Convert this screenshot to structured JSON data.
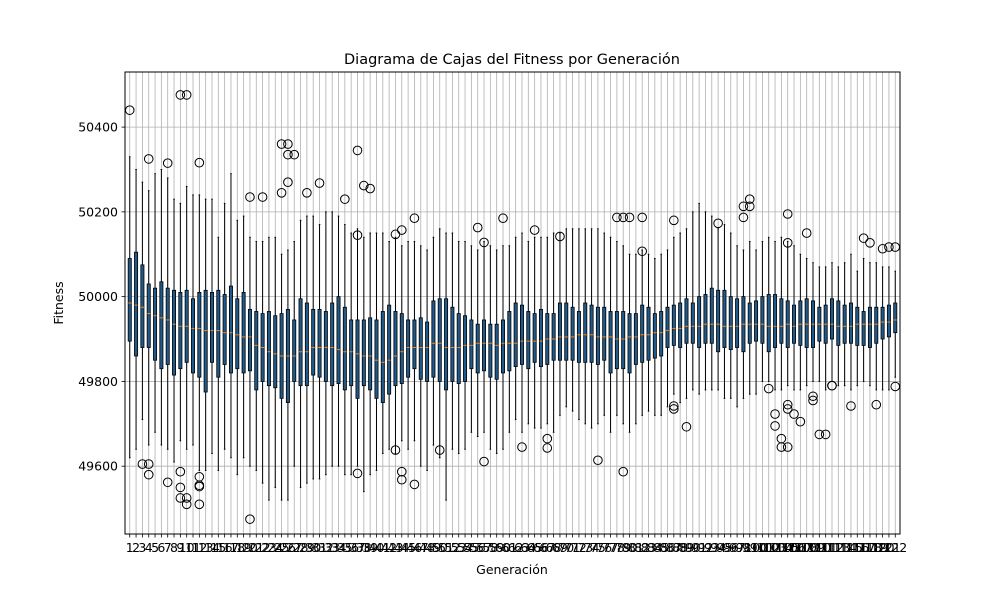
{
  "chart_data": {
    "type": "box",
    "title": "Diagrama de Cajas del Fitness por Generación",
    "xlabel": "Generación",
    "ylabel": "Fitness",
    "ylim": [
      49440,
      50530
    ],
    "yticks": [
      49600,
      49800,
      50000,
      50200,
      50400
    ],
    "grid": true,
    "generations": 122,
    "box_color": "#1f5a8a",
    "median_color": "#ff7f0e",
    "q1": [
      49895,
      49860,
      49880,
      49880,
      49850,
      49830,
      49840,
      49815,
      49830,
      49845,
      49820,
      49810,
      49775,
      49845,
      49810,
      49840,
      49820,
      49830,
      49820,
      49825,
      49780,
      49800,
      49790,
      49785,
      49760,
      49750,
      49800,
      49790,
      49790,
      49815,
      49810,
      49800,
      49790,
      49795,
      49780,
      49790,
      49760,
      49790,
      49780,
      49760,
      49750,
      49770,
      49790,
      49795,
      49810,
      49830,
      49805,
      49800,
      49810,
      49800,
      49780,
      49800,
      49795,
      49800,
      49830,
      49820,
      49825,
      49810,
      49805,
      49820,
      49825,
      49835,
      49840,
      49830,
      49845,
      49835,
      49840,
      49850,
      49850,
      49850,
      49850,
      49845,
      49845,
      49845,
      49840,
      49850,
      49820,
      49830,
      49830,
      49820,
      49840,
      49845,
      49850,
      49855,
      49860,
      49880,
      49885,
      49880,
      49890,
      49890,
      49880,
      49890,
      49890,
      49870,
      49880,
      49875,
      49880,
      49870,
      49890,
      49895,
      49890,
      49870,
      49880,
      49890,
      49880,
      49890,
      49885,
      49880,
      49880,
      49895,
      49890,
      49900,
      49885,
      49890,
      49890,
      49885,
      49885,
      49880,
      49890,
      49900,
      49905,
      49915
    ],
    "median": [
      49985,
      49980,
      49975,
      49960,
      49955,
      49950,
      49945,
      49935,
      49930,
      49930,
      49925,
      49925,
      49920,
      49920,
      49920,
      49915,
      49915,
      49910,
      49905,
      49905,
      49885,
      49880,
      49870,
      49865,
      49860,
      49860,
      49860,
      49870,
      49870,
      49880,
      49880,
      49880,
      49880,
      49875,
      49870,
      49870,
      49865,
      49860,
      49860,
      49850,
      49845,
      49850,
      49860,
      49870,
      49880,
      49880,
      49880,
      49880,
      49890,
      49890,
      49880,
      49880,
      49880,
      49885,
      49885,
      49890,
      49890,
      49890,
      49885,
      49890,
      49890,
      49890,
      49895,
      49895,
      49895,
      49895,
      49900,
      49900,
      49905,
      49905,
      49905,
      49910,
      49910,
      49910,
      49905,
      49905,
      49905,
      49900,
      49900,
      49905,
      49905,
      49910,
      49910,
      49915,
      49915,
      49920,
      49925,
      49925,
      49930,
      49930,
      49930,
      49935,
      49935,
      49935,
      49930,
      49930,
      49930,
      49935,
      49935,
      49935,
      49935,
      49930,
      49930,
      49930,
      49935,
      49930,
      49935,
      49935,
      49935,
      49935,
      49935,
      49935,
      49930,
      49930,
      49930,
      49935,
      49935,
      49935,
      49935,
      49940,
      49940,
      49945
    ],
    "q3": [
      50090,
      50105,
      50075,
      50030,
      50020,
      50035,
      50020,
      50015,
      50010,
      50015,
      49995,
      50010,
      50015,
      50010,
      50015,
      50005,
      50025,
      49995,
      50010,
      49970,
      49965,
      49960,
      49965,
      49955,
      49960,
      49970,
      49945,
      49995,
      49985,
      49970,
      49970,
      49965,
      49985,
      50000,
      49975,
      49945,
      49945,
      49945,
      49950,
      49945,
      49965,
      49980,
      49965,
      49960,
      49945,
      49945,
      49950,
      49940,
      49990,
      49995,
      49995,
      49975,
      49960,
      49955,
      49945,
      49935,
      49945,
      49935,
      49935,
      49945,
      49965,
      49985,
      49980,
      49965,
      49960,
      49970,
      49960,
      49960,
      49985,
      49985,
      49975,
      49965,
      49985,
      49980,
      49975,
      49975,
      49965,
      49965,
      49965,
      49960,
      49960,
      49980,
      49975,
      49960,
      49965,
      49975,
      49980,
      49985,
      49995,
      49985,
      50000,
      50005,
      50020,
      50015,
      50015,
      50000,
      49995,
      50000,
      49985,
      49990,
      50000,
      50005,
      50005,
      49995,
      49990,
      49980,
      49990,
      49995,
      49990,
      49975,
      49980,
      49995,
      49990,
      49980,
      49985,
      49975,
      49965,
      49975,
      49975,
      49975,
      49980,
      49985
    ],
    "whisker_low": [
      49620,
      49640,
      49710,
      49650,
      49680,
      49650,
      49640,
      49610,
      49660,
      49640,
      49650,
      49590,
      49590,
      49630,
      49590,
      49640,
      49620,
      49580,
      49620,
      49600,
      49590,
      49560,
      49520,
      49550,
      49520,
      49520,
      49600,
      49550,
      49560,
      49570,
      49570,
      49580,
      49600,
      49600,
      49580,
      49580,
      49600,
      49540,
      49580,
      49590,
      49630,
      49640,
      49630,
      49660,
      49640,
      49660,
      49600,
      49590,
      49650,
      49620,
      49520,
      49640,
      49630,
      49640,
      49680,
      49670,
      49680,
      49640,
      49630,
      49640,
      49680,
      49710,
      49680,
      49700,
      49690,
      49690,
      49700,
      49680,
      49720,
      49740,
      49730,
      49710,
      49700,
      49690,
      49700,
      49720,
      49680,
      49720,
      49700,
      49680,
      49700,
      49720,
      49730,
      49720,
      49720,
      49740,
      49770,
      49750,
      49760,
      49780,
      49770,
      49780,
      49780,
      49780,
      49760,
      49760,
      49740,
      49760,
      49770,
      49770,
      49800,
      49800,
      49780,
      49780,
      49790,
      49780,
      49780,
      49790,
      49800,
      49800,
      49780,
      49800,
      49790,
      49790,
      49780,
      49790,
      49800,
      49790,
      49780,
      49780,
      49780,
      49810
    ],
    "whisker_high": [
      50330,
      50300,
      50270,
      50250,
      50290,
      50300,
      50280,
      50230,
      50220,
      50260,
      50240,
      50240,
      50230,
      50230,
      50140,
      50220,
      50290,
      50180,
      50190,
      50140,
      50130,
      50130,
      50140,
      50140,
      50100,
      50110,
      50130,
      50180,
      50190,
      50190,
      50170,
      50200,
      50200,
      50190,
      50170,
      50150,
      50160,
      50140,
      50150,
      50150,
      50150,
      50130,
      50140,
      50120,
      50130,
      50130,
      50120,
      50110,
      50140,
      50160,
      50150,
      50150,
      50130,
      50130,
      50120,
      50110,
      50130,
      50120,
      50110,
      50120,
      50120,
      50140,
      50150,
      50130,
      50140,
      50140,
      50140,
      50150,
      50150,
      50160,
      50160,
      50160,
      50160,
      50160,
      50160,
      50150,
      50140,
      50130,
      50120,
      50100,
      50100,
      50110,
      50100,
      50090,
      50100,
      50110,
      50140,
      50150,
      50160,
      50200,
      50220,
      50200,
      50190,
      50160,
      50170,
      50150,
      50120,
      50110,
      50130,
      50110,
      50130,
      50140,
      50130,
      50140,
      50130,
      50120,
      50100,
      50090,
      50080,
      50070,
      50070,
      50080,
      50070,
      50080,
      50100,
      50060,
      50090,
      50080,
      50080,
      50070,
      50070,
      50060
    ],
    "outliers": [
      [
        1,
        50440
      ],
      [
        3,
        49605
      ],
      [
        4,
        50325
      ],
      [
        4,
        49605
      ],
      [
        4,
        49580
      ],
      [
        7,
        50315
      ],
      [
        7,
        49562
      ],
      [
        9,
        49525
      ],
      [
        9,
        49550
      ],
      [
        9,
        49587
      ],
      [
        9,
        50476
      ],
      [
        10,
        50476
      ],
      [
        10,
        49510
      ],
      [
        10,
        49525
      ],
      [
        12,
        50316
      ],
      [
        12,
        49575
      ],
      [
        12,
        49510
      ],
      [
        12,
        49555
      ],
      [
        12,
        49552
      ],
      [
        20,
        49475
      ],
      [
        20,
        50235
      ],
      [
        22,
        50235
      ],
      [
        25,
        50245
      ],
      [
        25,
        50360
      ],
      [
        26,
        50360
      ],
      [
        26,
        50335
      ],
      [
        26,
        50270
      ],
      [
        27,
        50335
      ],
      [
        29,
        50245
      ],
      [
        31,
        50268
      ],
      [
        35,
        50230
      ],
      [
        37,
        50345
      ],
      [
        37,
        50145
      ],
      [
        37,
        49583
      ],
      [
        38,
        50262
      ],
      [
        39,
        50255
      ],
      [
        43,
        49638
      ],
      [
        43,
        50147
      ],
      [
        44,
        49587
      ],
      [
        44,
        49568
      ],
      [
        44,
        50157
      ],
      [
        46,
        49557
      ],
      [
        46,
        50185
      ],
      [
        50,
        49638
      ],
      [
        56,
        50163
      ],
      [
        57,
        50128
      ],
      [
        57,
        49611
      ],
      [
        60,
        50185
      ],
      [
        63,
        49645
      ],
      [
        65,
        50157
      ],
      [
        67,
        49665
      ],
      [
        67,
        49643
      ],
      [
        69,
        50142
      ],
      [
        75,
        49614
      ],
      [
        78,
        50187
      ],
      [
        79,
        50187
      ],
      [
        79,
        49587
      ],
      [
        80,
        50187
      ],
      [
        82,
        50187
      ],
      [
        82,
        50107
      ],
      [
        87,
        50180
      ],
      [
        87,
        49742
      ],
      [
        87,
        49735
      ],
      [
        89,
        49693
      ],
      [
        94,
        50173
      ],
      [
        98,
        50213
      ],
      [
        98,
        50187
      ],
      [
        99,
        50213
      ],
      [
        99,
        50230
      ],
      [
        102,
        49783
      ],
      [
        103,
        49723
      ],
      [
        103,
        49695
      ],
      [
        104,
        49645
      ],
      [
        104,
        49665
      ],
      [
        105,
        50127
      ],
      [
        105,
        50195
      ],
      [
        105,
        49745
      ],
      [
        105,
        49735
      ],
      [
        105,
        49645
      ],
      [
        106,
        49723
      ],
      [
        107,
        49705
      ],
      [
        108,
        50150
      ],
      [
        109,
        49765
      ],
      [
        109,
        49755
      ],
      [
        110,
        49675
      ],
      [
        111,
        49675
      ],
      [
        112,
        49790
      ],
      [
        112,
        49790
      ],
      [
        115,
        49742
      ],
      [
        117,
        50138
      ],
      [
        118,
        50127
      ],
      [
        119,
        49745
      ],
      [
        120,
        50113
      ],
      [
        121,
        50117
      ],
      [
        122,
        50117
      ],
      [
        122,
        49788
      ]
    ]
  }
}
